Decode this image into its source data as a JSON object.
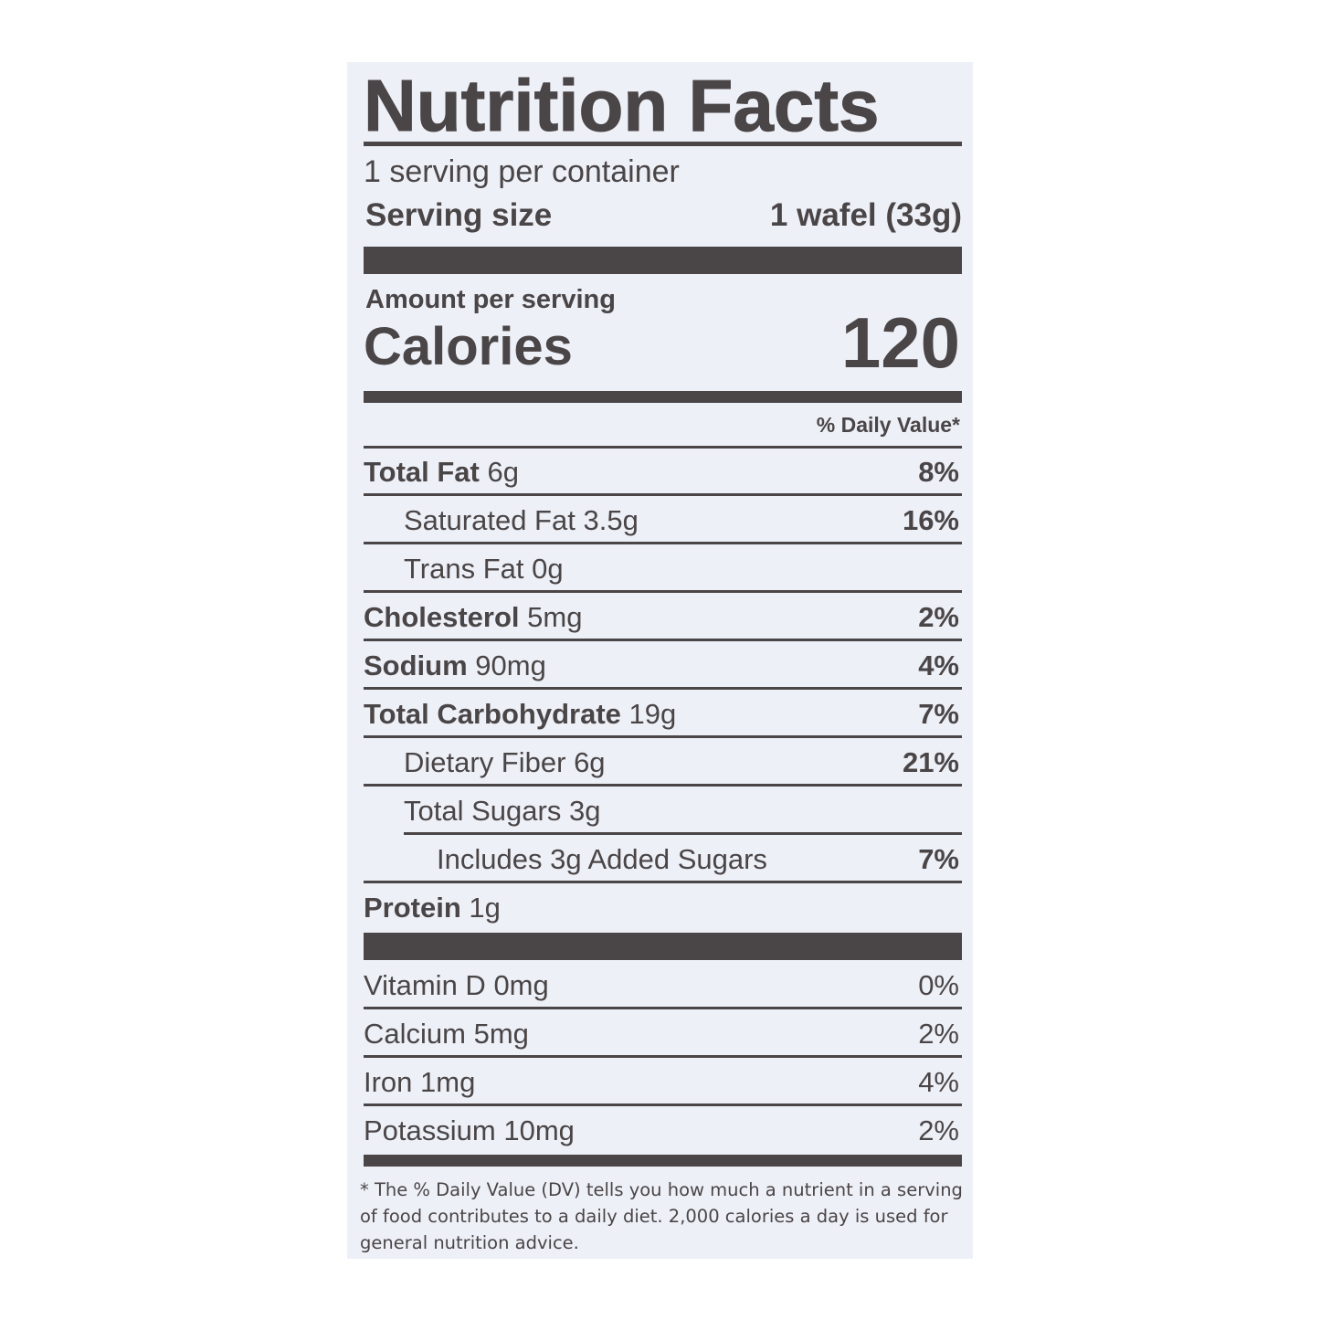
{
  "title": "Nutrition Facts",
  "servings_per_container": "1 serving per container",
  "serving_size_label": "Serving size",
  "serving_size_value": "1 wafel (33g)",
  "amount_per_serving": "Amount per serving",
  "calories_label": "Calories",
  "calories_value": "120",
  "daily_value_header": "% Daily Value*",
  "nutrients": [
    {
      "name": "Total Fat",
      "amount": "6g",
      "dv": "8%"
    },
    {
      "name": "Saturated Fat",
      "amount": "3.5g",
      "dv": "16%"
    },
    {
      "name": "Trans Fat",
      "amount": "0g",
      "dv": ""
    },
    {
      "name": "Cholesterol",
      "amount": "5mg",
      "dv": "2%"
    },
    {
      "name": "Sodium",
      "amount": "90mg",
      "dv": "4%"
    },
    {
      "name": "Total Carbohydrate",
      "amount": "19g",
      "dv": "7%"
    },
    {
      "name": "Dietary Fiber",
      "amount": "6g",
      "dv": "21%"
    },
    {
      "name": "Total Sugars",
      "amount": "3g",
      "dv": ""
    },
    {
      "name": "Includes 3g Added Sugars",
      "amount": "",
      "dv": "7%"
    },
    {
      "name": "Protein",
      "amount": "1g",
      "dv": ""
    }
  ],
  "vitamins": [
    {
      "name": "Vitamin D",
      "amount": "0mg",
      "dv": "0%"
    },
    {
      "name": "Calcium",
      "amount": "5mg",
      "dv": "2%"
    },
    {
      "name": "Iron",
      "amount": "1mg",
      "dv": "4%"
    },
    {
      "name": "Potassium",
      "amount": "10mg",
      "dv": "2%"
    }
  ],
  "footnote": "* The % Daily Value (DV) tells you how much a nutrient in a serving of food contributes to a daily diet. 2,000 calories a day is used for general nutrition advice.",
  "colors": {
    "ink": "#4a4546",
    "background": "#eef0f8"
  }
}
